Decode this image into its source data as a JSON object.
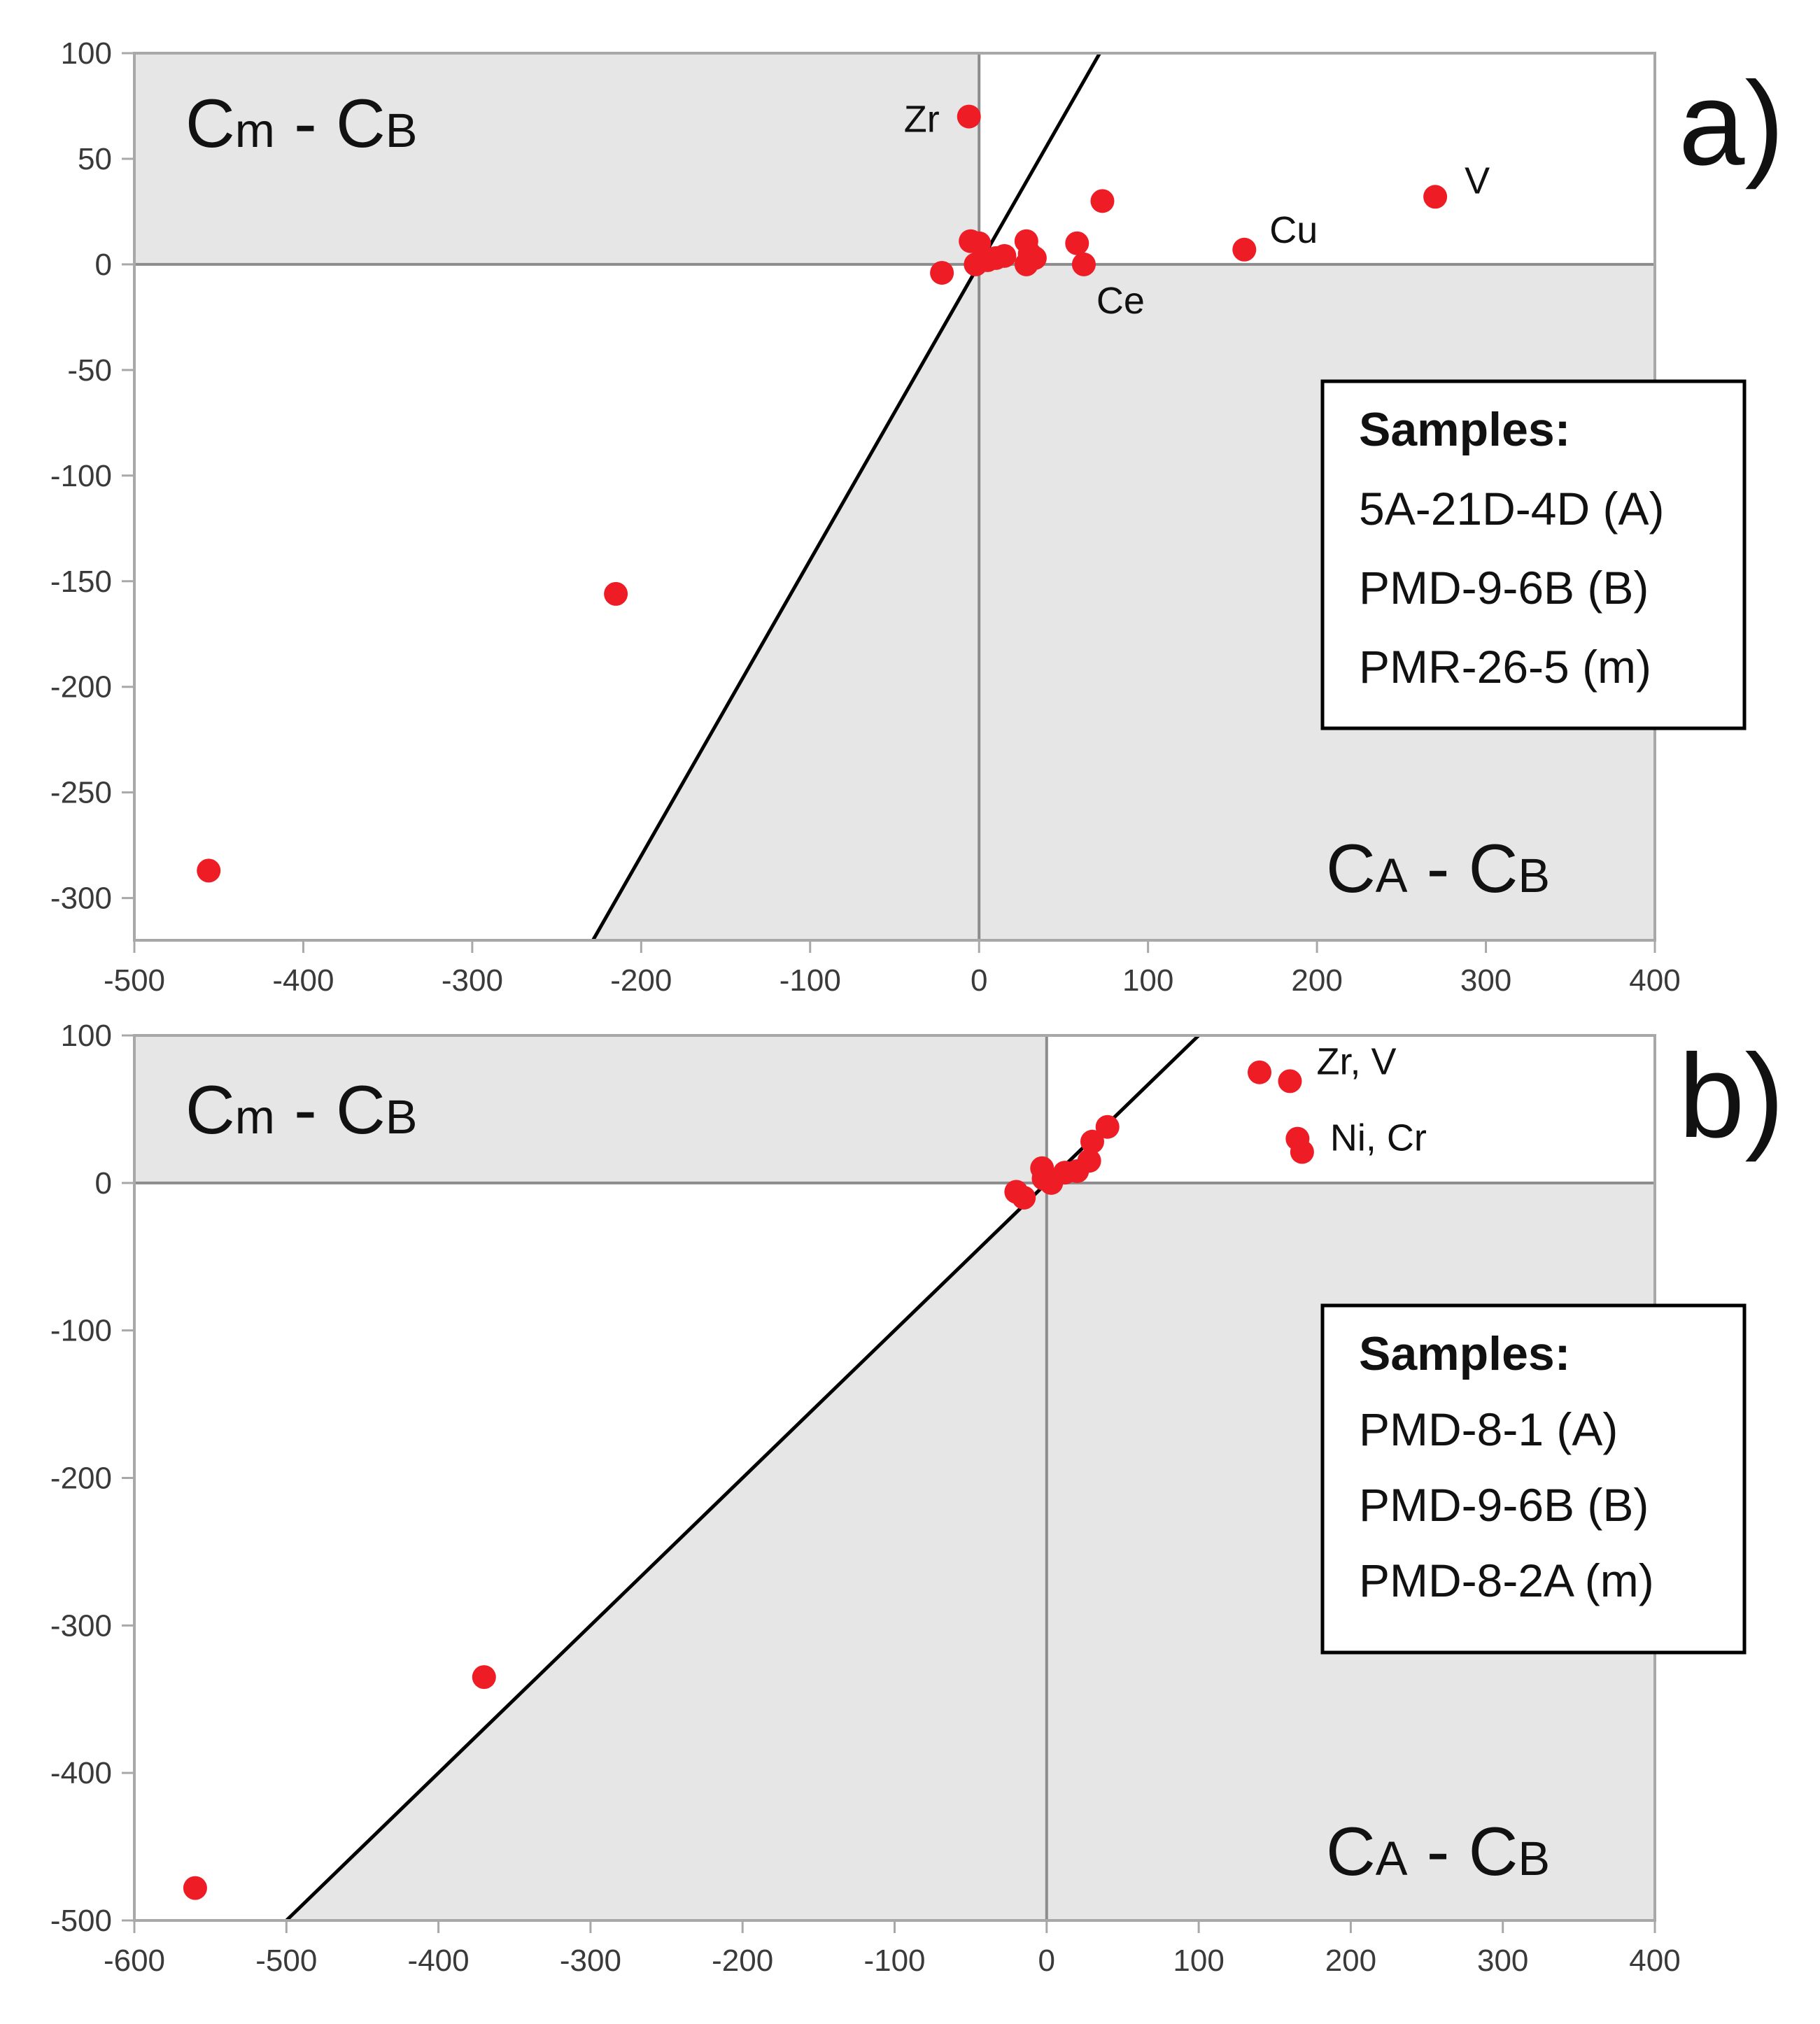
{
  "chart_data": [
    {
      "panel_label": "a)",
      "type": "scatter",
      "xlim": [
        -500,
        400
      ],
      "ylim": [
        -320,
        100
      ],
      "xticks": [
        -500,
        -400,
        -300,
        -200,
        -100,
        0,
        100,
        200,
        300,
        400
      ],
      "yticks": [
        100,
        50,
        0,
        -50,
        -100,
        -150,
        -200,
        -250,
        -300
      ],
      "y_label_parts": {
        "main": "C",
        "sub": "m",
        "mid": " - C",
        "sub2": "B"
      },
      "x_label_parts": {
        "main": "C",
        "sub": "A",
        "mid": " - C",
        "sub2": "B"
      },
      "reference_line": {
        "slope": 1.4,
        "intercept": 0
      },
      "shading": "quadrants x<0,y>0 and x>0,y<0 grey; region between reference line and y-axis grey",
      "legend": {
        "title": "Samples:",
        "entries": [
          "5A-21D-4D (A)",
          "PMD-9-6B (B)",
          "PMR-26-5 (m)"
        ]
      },
      "points": [
        {
          "x": -456,
          "y": -287
        },
        {
          "x": -215,
          "y": -156
        },
        {
          "x": -22,
          "y": -4
        },
        {
          "x": -6,
          "y": 70,
          "label": "Zr"
        },
        {
          "x": -5,
          "y": 11
        },
        {
          "x": 0,
          "y": 10
        },
        {
          "x": -2,
          "y": 0
        },
        {
          "x": 5,
          "y": 2
        },
        {
          "x": 10,
          "y": 3
        },
        {
          "x": 15,
          "y": 4
        },
        {
          "x": 28,
          "y": 11
        },
        {
          "x": 28,
          "y": 0
        },
        {
          "x": 30,
          "y": 5
        },
        {
          "x": 33,
          "y": 3
        },
        {
          "x": 58,
          "y": 10
        },
        {
          "x": 62,
          "y": 0,
          "label": "Ce"
        },
        {
          "x": 73,
          "y": 30
        },
        {
          "x": 157,
          "y": 7,
          "label": "Cu"
        },
        {
          "x": 270,
          "y": 32,
          "label": "V"
        }
      ]
    },
    {
      "panel_label": "b)",
      "type": "scatter",
      "xlim": [
        -600,
        400
      ],
      "ylim": [
        -500,
        100
      ],
      "xticks": [
        -600,
        -500,
        -400,
        -300,
        -200,
        -100,
        0,
        100,
        200,
        300,
        400
      ],
      "yticks": [
        100,
        0,
        -100,
        -200,
        -300,
        -400,
        -500
      ],
      "y_label_parts": {
        "main": "C",
        "sub": "m",
        "mid": " - C",
        "sub2": "B"
      },
      "x_label_parts": {
        "main": "C",
        "sub": "A",
        "mid": " - C",
        "sub2": "B"
      },
      "reference_line": {
        "slope": 1.0,
        "intercept": 0
      },
      "shading": "quadrants x<0,y>0 and x>0,y<0 grey; region between reference line and y-axis grey",
      "legend": {
        "title": "Samples:",
        "entries": [
          "PMD-8-1 (A)",
          "PMD-9-6B (B)",
          "PMD-8-2A (m)"
        ]
      },
      "points": [
        {
          "x": -560,
          "y": -478
        },
        {
          "x": -370,
          "y": -335
        },
        {
          "x": -20,
          "y": -6
        },
        {
          "x": -15,
          "y": -10
        },
        {
          "x": -3,
          "y": 10
        },
        {
          "x": -2,
          "y": 3
        },
        {
          "x": 3,
          "y": 0
        },
        {
          "x": 12,
          "y": 7
        },
        {
          "x": 20,
          "y": 8
        },
        {
          "x": 28,
          "y": 15
        },
        {
          "x": 30,
          "y": 28
        },
        {
          "x": 40,
          "y": 38
        },
        {
          "x": 140,
          "y": 75
        },
        {
          "x": 160,
          "y": 69,
          "label": "Zr, V"
        },
        {
          "x": 165,
          "y": 30
        },
        {
          "x": 168,
          "y": 21,
          "label": "Ni, Cr"
        }
      ]
    }
  ],
  "colors": {
    "point": "#ee1c24",
    "shade": "#e6e6e6",
    "frame": "#a8a8a8",
    "line": "#000000",
    "text": "#222222",
    "tick_text": "#3a3a3a"
  }
}
